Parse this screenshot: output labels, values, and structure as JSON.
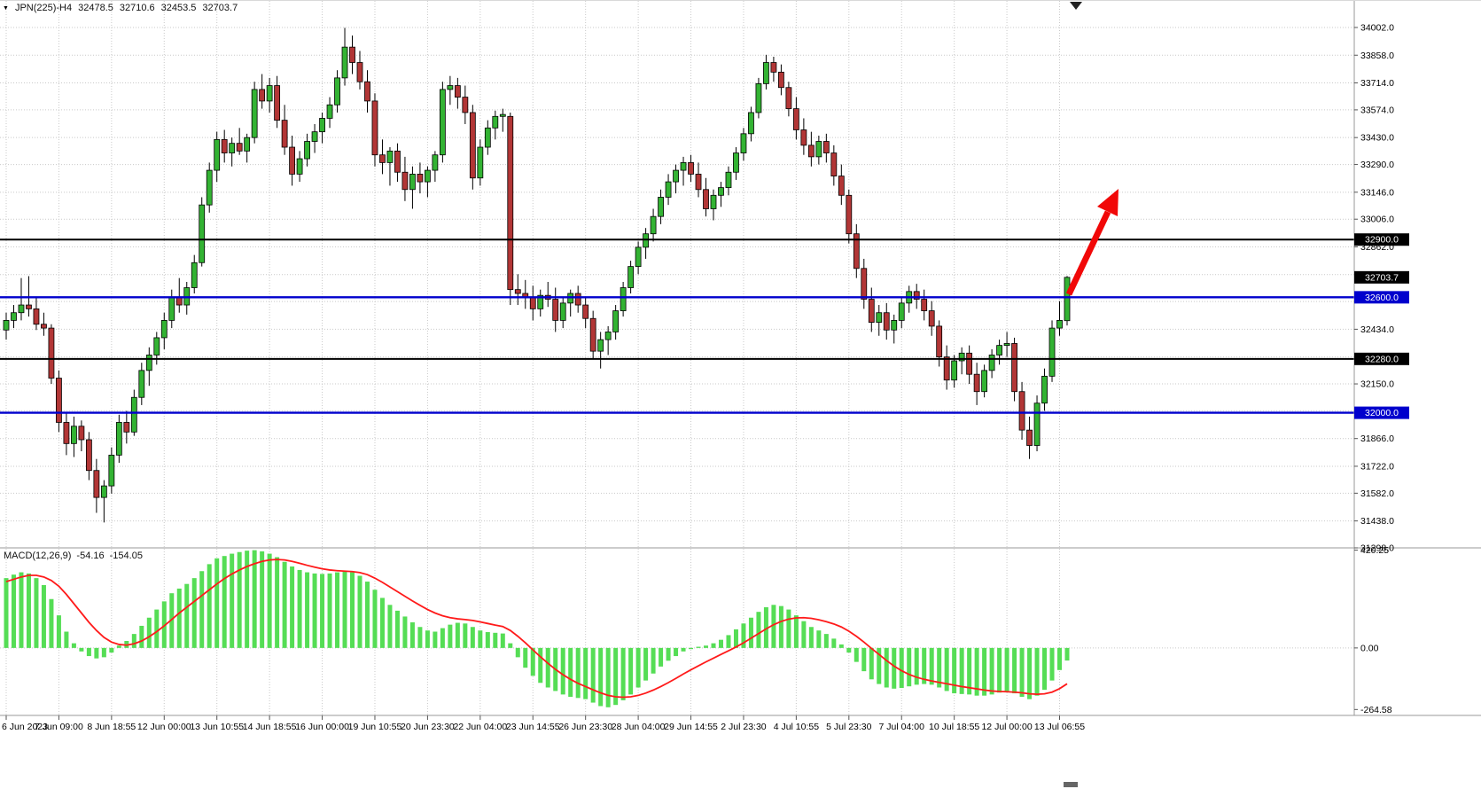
{
  "header": {
    "symbol": "JPN(225)-H4",
    "open": "32478.5",
    "high": "32710.6",
    "low": "32453.5",
    "close": "32703.7",
    "collapse_icon": "▼"
  },
  "colors": {
    "background": "#ffffff",
    "grid": "#c9c9c9",
    "candle_up": "#33b333",
    "candle_down": "#b23636",
    "wick": "#000000",
    "macd_histogram": "#55dd55",
    "macd_signal": "#ff1a1a",
    "level_black": "#000000",
    "level_blue": "#0000cd",
    "arrow": "#f10808",
    "axis_text": "#000000"
  },
  "chart_data": {
    "type": "candlestick",
    "title": "JPN(225)-H4",
    "timeframe": "H4",
    "ylim": [
      31298.0,
      34002.0
    ],
    "grid": true,
    "price_grid": [
      {
        "price": 34002,
        "label": "34002.0"
      },
      {
        "price": 33858,
        "label": "33858.0"
      },
      {
        "price": 33714,
        "label": "33714.0"
      },
      {
        "price": 33574,
        "label": "33574.0"
      },
      {
        "price": 33430,
        "label": "33430.0"
      },
      {
        "price": 33290,
        "label": "33290.0"
      },
      {
        "price": 33146,
        "label": "33146.0"
      },
      {
        "price": 33006,
        "label": "33006.0"
      },
      {
        "price": 32862,
        "label": "32862.0"
      },
      {
        "price": 32718,
        "label": ""
      },
      {
        "price": 32578,
        "label": ""
      },
      {
        "price": 32434,
        "label": "32434.0"
      },
      {
        "price": 32290,
        "label": ""
      },
      {
        "price": 32150,
        "label": "32150.0"
      },
      {
        "price": 32010,
        "label": ""
      },
      {
        "price": 31866,
        "label": "31866.0"
      },
      {
        "price": 31722,
        "label": "31722.0"
      },
      {
        "price": 31582,
        "label": "31582.0"
      },
      {
        "price": 31438,
        "label": "31438.0"
      },
      {
        "price": 31298,
        "label": "31298.0"
      }
    ],
    "levels": [
      {
        "price": 32900,
        "label": "32900.0",
        "color": "#000000"
      },
      {
        "price": 32600,
        "label": "32600.0",
        "color": "#0000cd"
      },
      {
        "price": 32280,
        "label": "32280.0",
        "color": "#000000"
      },
      {
        "price": 32000,
        "label": "32000.0",
        "color": "#0000cd"
      }
    ],
    "current_price": {
      "label": "32703.7",
      "price": 32703.7,
      "bg": "#000000"
    },
    "time_axis_labels": [
      "6 Jun 2023",
      "7 Jun 09:00",
      "8 Jun 18:55",
      "12 Jun 00:00",
      "13 Jun 10:55",
      "14 Jun 18:55",
      "16 Jun 00:00",
      "19 Jun 10:55",
      "20 Jun 23:30",
      "22 Jun 04:00",
      "23 Jun 14:55",
      "26 Jun 23:30",
      "28 Jun 04:00",
      "29 Jun 14:55",
      "2 Jul 23:30",
      "4 Jul 10:55",
      "5 Jul 23:30",
      "7 Jul 04:00",
      "10 Jul 18:55",
      "12 Jul 00:00",
      "13 Jul 06:55"
    ],
    "candles": [
      [
        32430,
        32520,
        32380,
        32480
      ],
      [
        32480,
        32560,
        32440,
        32520
      ],
      [
        32520,
        32700,
        32480,
        32560
      ],
      [
        32560,
        32710,
        32500,
        32540
      ],
      [
        32540,
        32600,
        32430,
        32460
      ],
      [
        32460,
        32520,
        32400,
        32440
      ],
      [
        32440,
        32460,
        32150,
        32180
      ],
      [
        32180,
        32220,
        31900,
        31950
      ],
      [
        31950,
        32000,
        31780,
        31840
      ],
      [
        31840,
        31980,
        31770,
        31930
      ],
      [
        31930,
        31960,
        31800,
        31860
      ],
      [
        31860,
        31900,
        31650,
        31700
      ],
      [
        31700,
        31760,
        31480,
        31560
      ],
      [
        31560,
        31650,
        31430,
        31620
      ],
      [
        31620,
        31820,
        31580,
        31780
      ],
      [
        31780,
        31990,
        31740,
        31950
      ],
      [
        31950,
        32010,
        31840,
        31900
      ],
      [
        31900,
        32120,
        31880,
        32080
      ],
      [
        32080,
        32260,
        32040,
        32220
      ],
      [
        32220,
        32340,
        32140,
        32300
      ],
      [
        32300,
        32420,
        32250,
        32390
      ],
      [
        32390,
        32520,
        32330,
        32480
      ],
      [
        32480,
        32640,
        32440,
        32600
      ],
      [
        32600,
        32700,
        32520,
        32560
      ],
      [
        32560,
        32680,
        32510,
        32650
      ],
      [
        32650,
        32820,
        32620,
        32780
      ],
      [
        32780,
        33120,
        32760,
        33080
      ],
      [
        33080,
        33300,
        33040,
        33260
      ],
      [
        33260,
        33460,
        33200,
        33420
      ],
      [
        33420,
        33470,
        33300,
        33350
      ],
      [
        33350,
        33430,
        33280,
        33400
      ],
      [
        33400,
        33480,
        33340,
        33360
      ],
      [
        33360,
        33450,
        33300,
        33430
      ],
      [
        33430,
        33720,
        33400,
        33680
      ],
      [
        33680,
        33760,
        33580,
        33620
      ],
      [
        33620,
        33740,
        33560,
        33700
      ],
      [
        33700,
        33750,
        33480,
        33520
      ],
      [
        33520,
        33600,
        33340,
        33380
      ],
      [
        33380,
        33440,
        33180,
        33240
      ],
      [
        33240,
        33360,
        33200,
        33320
      ],
      [
        33320,
        33450,
        33280,
        33410
      ],
      [
        33410,
        33500,
        33350,
        33460
      ],
      [
        33460,
        33560,
        33400,
        33530
      ],
      [
        33530,
        33640,
        33480,
        33600
      ],
      [
        33600,
        33780,
        33560,
        33740
      ],
      [
        33740,
        34000,
        33700,
        33900
      ],
      [
        33900,
        33960,
        33760,
        33820
      ],
      [
        33820,
        33880,
        33680,
        33720
      ],
      [
        33720,
        33780,
        33560,
        33620
      ],
      [
        33620,
        33660,
        33280,
        33340
      ],
      [
        33340,
        33420,
        33240,
        33300
      ],
      [
        33300,
        33380,
        33180,
        33360
      ],
      [
        33360,
        33400,
        33200,
        33250
      ],
      [
        33250,
        33330,
        33100,
        33160
      ],
      [
        33160,
        33280,
        33060,
        33240
      ],
      [
        33240,
        33300,
        33140,
        33200
      ],
      [
        33200,
        33280,
        33120,
        33260
      ],
      [
        33260,
        33360,
        33200,
        33340
      ],
      [
        33340,
        33720,
        33300,
        33680
      ],
      [
        33680,
        33750,
        33600,
        33700
      ],
      [
        33700,
        33740,
        33580,
        33640
      ],
      [
        33640,
        33700,
        33500,
        33560
      ],
      [
        33560,
        33600,
        33160,
        33220
      ],
      [
        33220,
        33420,
        33180,
        33380
      ],
      [
        33380,
        33520,
        33340,
        33480
      ],
      [
        33480,
        33570,
        33420,
        33540
      ],
      [
        33540,
        33580,
        33460,
        33550
      ],
      [
        33540,
        33560,
        32560,
        32640
      ],
      [
        32640,
        32720,
        32560,
        32620
      ],
      [
        32620,
        32690,
        32540,
        32600
      ],
      [
        32600,
        32660,
        32480,
        32540
      ],
      [
        32540,
        32640,
        32500,
        32610
      ],
      [
        32610,
        32680,
        32550,
        32590
      ],
      [
        32590,
        32650,
        32420,
        32480
      ],
      [
        32480,
        32600,
        32440,
        32570
      ],
      [
        32570,
        32640,
        32500,
        32620
      ],
      [
        32620,
        32660,
        32520,
        32560
      ],
      [
        32560,
        32600,
        32440,
        32490
      ],
      [
        32490,
        32530,
        32280,
        32320
      ],
      [
        32320,
        32420,
        32230,
        32380
      ],
      [
        32380,
        32450,
        32300,
        32420
      ],
      [
        32420,
        32560,
        32380,
        32530
      ],
      [
        32530,
        32680,
        32500,
        32650
      ],
      [
        32650,
        32790,
        32620,
        32760
      ],
      [
        32760,
        32890,
        32720,
        32860
      ],
      [
        32860,
        32960,
        32800,
        32930
      ],
      [
        32930,
        33060,
        32890,
        33020
      ],
      [
        33020,
        33160,
        32980,
        33120
      ],
      [
        33120,
        33240,
        33080,
        33200
      ],
      [
        33200,
        33290,
        33140,
        33260
      ],
      [
        33260,
        33330,
        33180,
        33300
      ],
      [
        33300,
        33340,
        33200,
        33240
      ],
      [
        33240,
        33300,
        33120,
        33160
      ],
      [
        33160,
        33220,
        33020,
        33060
      ],
      [
        33060,
        33160,
        33000,
        33130
      ],
      [
        33130,
        33200,
        33070,
        33170
      ],
      [
        33170,
        33280,
        33130,
        33250
      ],
      [
        33250,
        33380,
        33210,
        33350
      ],
      [
        33350,
        33480,
        33310,
        33450
      ],
      [
        33450,
        33590,
        33410,
        33560
      ],
      [
        33560,
        33740,
        33530,
        33710
      ],
      [
        33710,
        33860,
        33680,
        33820
      ],
      [
        33820,
        33850,
        33720,
        33770
      ],
      [
        33770,
        33810,
        33650,
        33690
      ],
      [
        33690,
        33720,
        33540,
        33580
      ],
      [
        33580,
        33640,
        33420,
        33470
      ],
      [
        33470,
        33530,
        33340,
        33390
      ],
      [
        33390,
        33460,
        33280,
        33330
      ],
      [
        33330,
        33440,
        33290,
        33410
      ],
      [
        33410,
        33450,
        33300,
        33350
      ],
      [
        33350,
        33390,
        33180,
        33230
      ],
      [
        33230,
        33290,
        33080,
        33130
      ],
      [
        33130,
        33160,
        32880,
        32930
      ],
      [
        32930,
        32980,
        32700,
        32750
      ],
      [
        32750,
        32800,
        32540,
        32590
      ],
      [
        32590,
        32650,
        32420,
        32470
      ],
      [
        32470,
        32560,
        32400,
        32520
      ],
      [
        32520,
        32570,
        32380,
        32430
      ],
      [
        32430,
        32510,
        32360,
        32480
      ],
      [
        32480,
        32600,
        32440,
        32570
      ],
      [
        32570,
        32660,
        32520,
        32630
      ],
      [
        32630,
        32670,
        32540,
        32590
      ],
      [
        32590,
        32640,
        32480,
        32530
      ],
      [
        32530,
        32580,
        32400,
        32450
      ],
      [
        32450,
        32480,
        32240,
        32290
      ],
      [
        32290,
        32350,
        32120,
        32170
      ],
      [
        32170,
        32300,
        32130,
        32270
      ],
      [
        32270,
        32340,
        32200,
        32310
      ],
      [
        32310,
        32350,
        32150,
        32200
      ],
      [
        32200,
        32260,
        32040,
        32110
      ],
      [
        32110,
        32250,
        32080,
        32220
      ],
      [
        32220,
        32330,
        32180,
        32300
      ],
      [
        32300,
        32380,
        32250,
        32350
      ],
      [
        32350,
        32420,
        32290,
        32360
      ],
      [
        32360,
        32390,
        32060,
        32110
      ],
      [
        32110,
        32160,
        31860,
        31910
      ],
      [
        31910,
        31980,
        31760,
        31830
      ],
      [
        31830,
        32090,
        31800,
        32050
      ],
      [
        32050,
        32230,
        32010,
        32190
      ],
      [
        32190,
        32480,
        32160,
        32440
      ],
      [
        32440,
        32580,
        32400,
        32480
      ],
      [
        32478.5,
        32710.6,
        32453.5,
        32703.7
      ]
    ],
    "macd": {
      "label": "MACD(12,26,9)",
      "value": "-54.16",
      "signal_value": "-154.05",
      "range": [
        -264.58,
        420.25
      ],
      "axis": [
        {
          "value": 420.25,
          "label": "420.25"
        },
        {
          "value": 0,
          "label": "0.00"
        },
        {
          "value": -264.58,
          "label": "-264.58"
        }
      ],
      "histogram": [
        300,
        315,
        325,
        320,
        300,
        270,
        210,
        140,
        70,
        20,
        -15,
        -35,
        -45,
        -40,
        -20,
        10,
        30,
        60,
        95,
        130,
        165,
        200,
        235,
        255,
        275,
        300,
        330,
        360,
        385,
        395,
        405,
        412,
        418,
        420,
        415,
        405,
        390,
        370,
        350,
        335,
        325,
        320,
        318,
        320,
        325,
        330,
        325,
        310,
        285,
        250,
        215,
        185,
        160,
        135,
        110,
        90,
        75,
        70,
        85,
        100,
        108,
        105,
        90,
        75,
        68,
        65,
        62,
        20,
        -40,
        -85,
        -120,
        -150,
        -170,
        -185,
        -200,
        -210,
        -215,
        -220,
        -235,
        -250,
        -255,
        -245,
        -225,
        -200,
        -170,
        -140,
        -110,
        -80,
        -55,
        -35,
        -15,
        -5,
        5,
        10,
        20,
        35,
        55,
        80,
        105,
        130,
        155,
        175,
        185,
        180,
        165,
        140,
        115,
        90,
        75,
        60,
        40,
        15,
        -20,
        -60,
        -100,
        -135,
        -155,
        -170,
        -175,
        -172,
        -165,
        -158,
        -155,
        -158,
        -170,
        -185,
        -195,
        -198,
        -200,
        -205,
        -205,
        -200,
        -192,
        -185,
        -195,
        -210,
        -220,
        -205,
        -180,
        -140,
        -95,
        -54.16
      ],
      "signal": [
        285,
        295,
        305,
        312,
        312,
        305,
        290,
        265,
        230,
        190,
        150,
        110,
        75,
        45,
        25,
        15,
        12,
        18,
        30,
        48,
        70,
        95,
        122,
        150,
        175,
        200,
        225,
        250,
        275,
        298,
        318,
        335,
        350,
        362,
        372,
        378,
        380,
        378,
        372,
        364,
        355,
        347,
        340,
        335,
        332,
        330,
        328,
        324,
        315,
        300,
        282,
        262,
        242,
        222,
        202,
        183,
        165,
        150,
        138,
        130,
        125,
        122,
        118,
        112,
        105,
        98,
        92,
        75,
        50,
        22,
        -8,
        -38,
        -66,
        -92,
        -115,
        -135,
        -152,
        -166,
        -180,
        -193,
        -204,
        -210,
        -212,
        -210,
        -204,
        -194,
        -181,
        -166,
        -149,
        -131,
        -112,
        -94,
        -77,
        -60,
        -44,
        -28,
        -12,
        4,
        22,
        42,
        62,
        82,
        100,
        114,
        124,
        129,
        130,
        127,
        121,
        113,
        103,
        90,
        72,
        50,
        25,
        -2,
        -28,
        -54,
        -78,
        -98,
        -114,
        -126,
        -135,
        -142,
        -148,
        -154,
        -160,
        -166,
        -171,
        -176,
        -181,
        -185,
        -187,
        -188,
        -190,
        -193,
        -197,
        -199,
        -197,
        -190,
        -175,
        -154.05
      ]
    },
    "annotations": {
      "arrow": {
        "direction": "up-right",
        "color": "#f10808"
      }
    }
  }
}
